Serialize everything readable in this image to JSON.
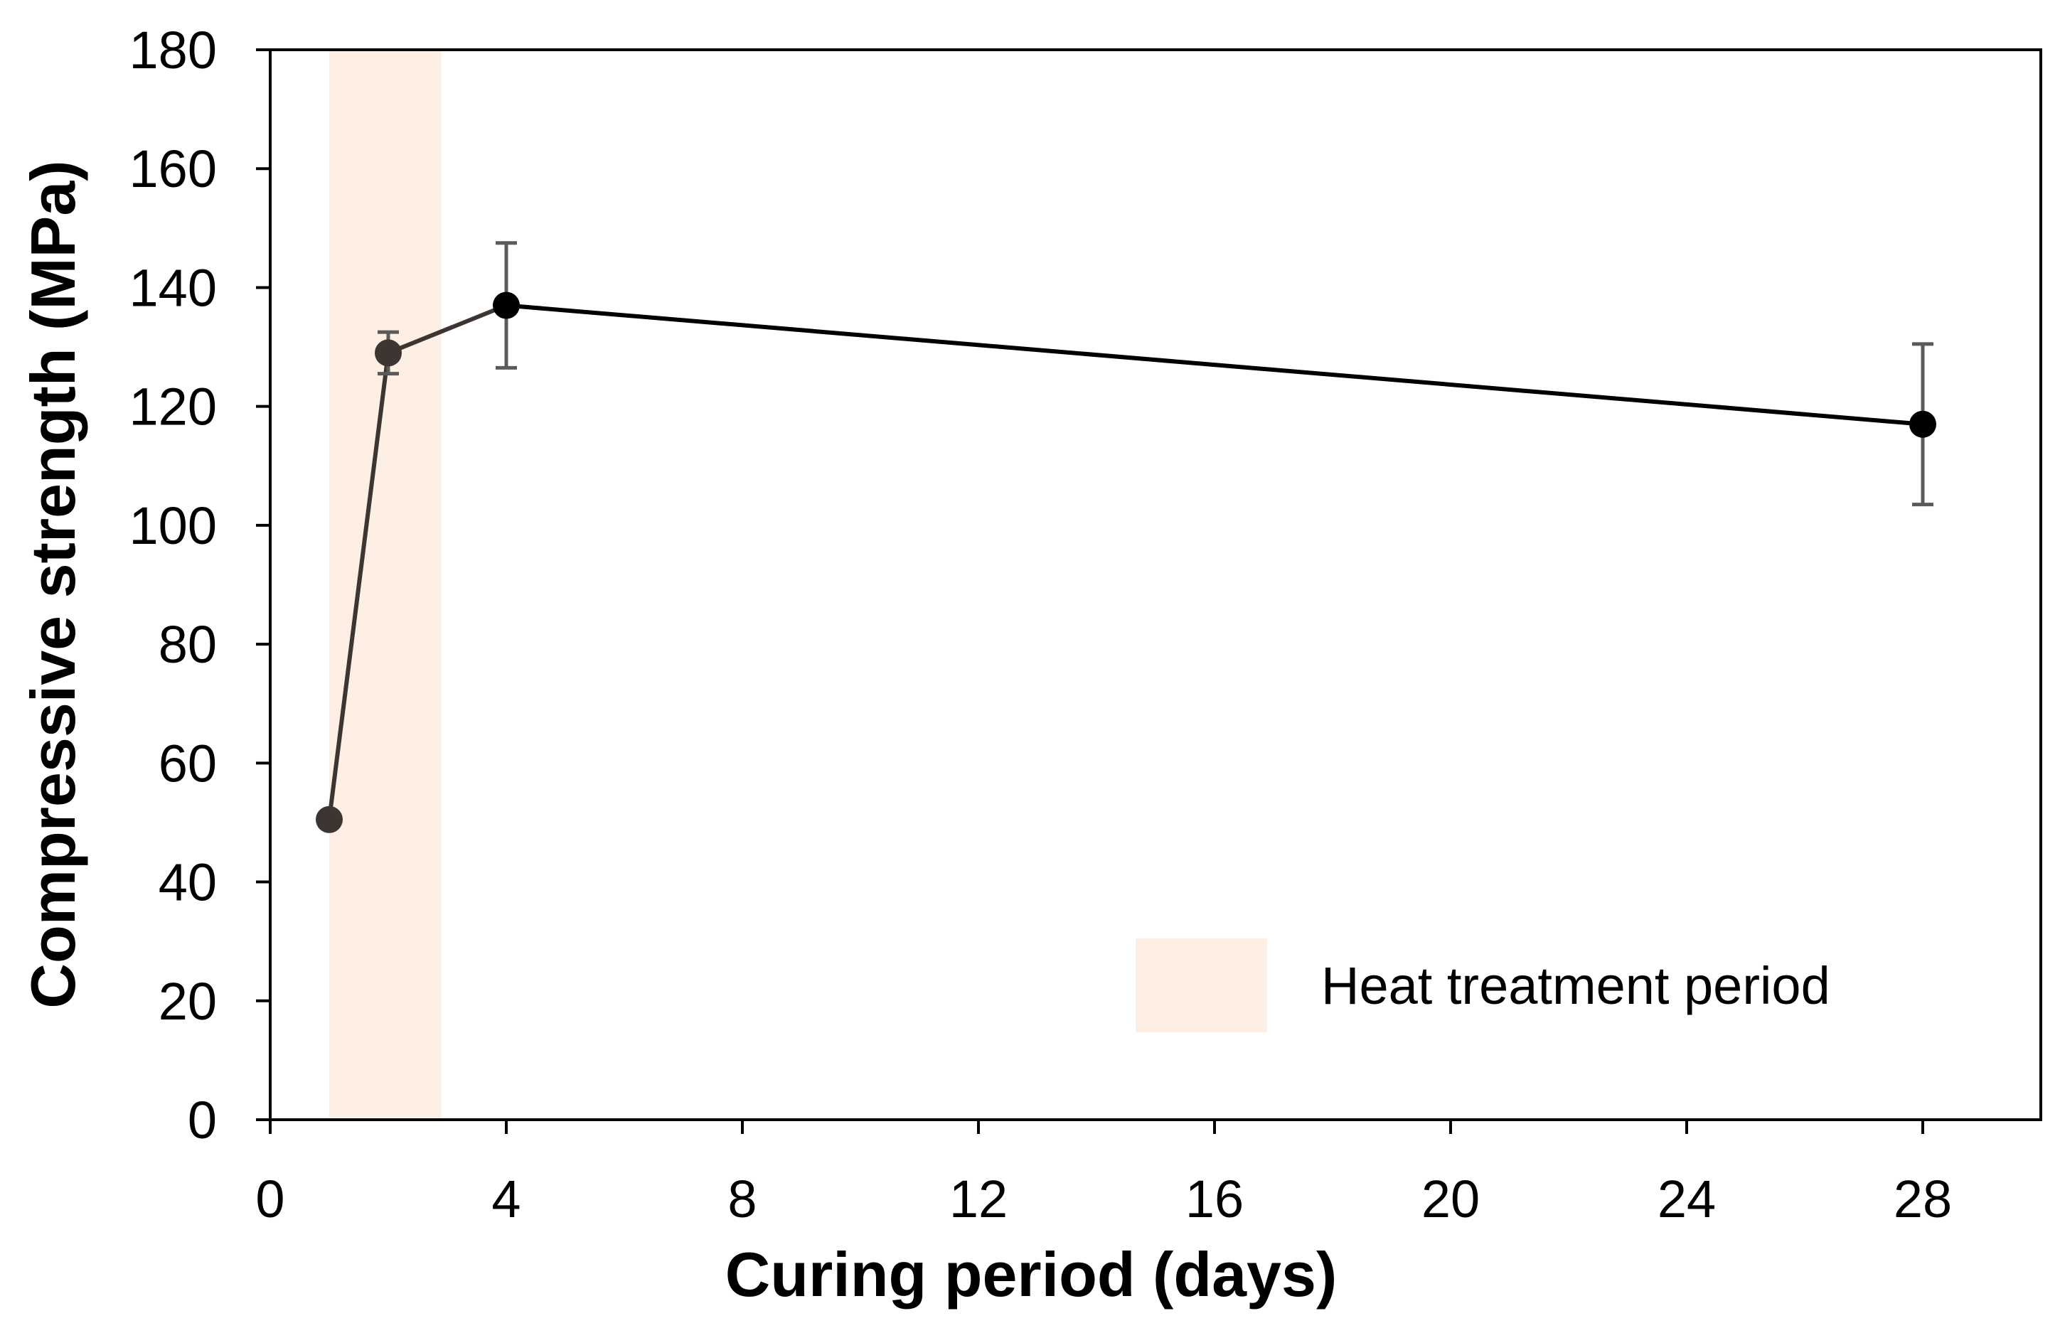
{
  "chart_data": {
    "type": "line",
    "title": "",
    "xlabel": "Curing period (days)",
    "ylabel": "Compressive strength (MPa)",
    "xlim": [
      0,
      30
    ],
    "ylim": [
      0,
      180
    ],
    "xticks": [
      0,
      4,
      8,
      12,
      16,
      20,
      24,
      28
    ],
    "yticks": [
      0,
      20,
      40,
      60,
      80,
      100,
      120,
      140,
      160,
      180
    ],
    "grid": false,
    "series": [
      {
        "name": "Compressive strength",
        "x": [
          1,
          2,
          4,
          28
        ],
        "y": [
          50.5,
          129,
          137,
          117
        ],
        "error": [
          null,
          3.5,
          10.5,
          13.5
        ],
        "colors": [
          "#3d3532",
          "#3d3532",
          "#000000",
          "#000000"
        ]
      }
    ],
    "shaded_region": {
      "label": "Heat treatment period",
      "x_start": 1,
      "x_end": 2.9,
      "color": "#fdefe4"
    },
    "legend": {
      "position": "bottom-right",
      "label": "Heat treatment period"
    }
  }
}
